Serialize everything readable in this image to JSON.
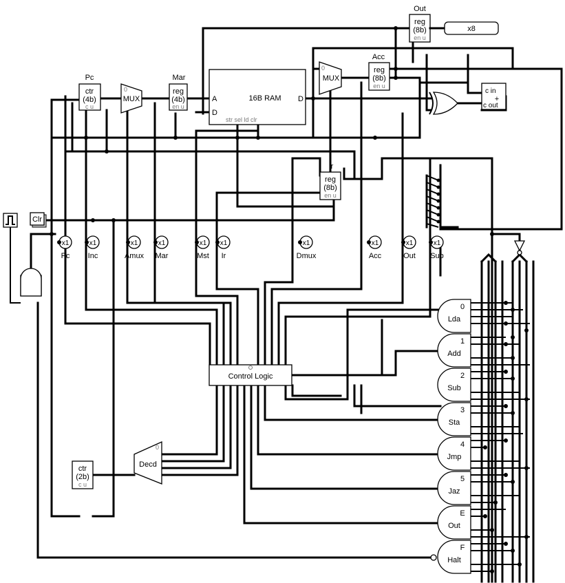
{
  "components": {
    "pc": {
      "title": "Pc",
      "line1": "ctr",
      "line2": "(4b)",
      "pins": "c  u"
    },
    "mar": {
      "title": "Mar",
      "line1": "reg",
      "line2": "(4b)",
      "pins": "en u"
    },
    "ram": {
      "title": "16B RAM",
      "pin_a": "A",
      "pin_d": "D",
      "pin_dout": "D",
      "ctrl": "str  sel      ld   clr"
    },
    "acc": {
      "title": "Acc",
      "line1": "reg",
      "line2": "(8b)",
      "pins": "en u"
    },
    "out": {
      "title": "Out",
      "line1": "reg",
      "line2": "(8b)",
      "pins": "en u"
    },
    "ir": {
      "title": "Ir",
      "line1": "reg",
      "line2": "(8b)",
      "pins": "en u"
    },
    "mux1": {
      "label": "MUX",
      "zero": "0"
    },
    "mux2": {
      "label": "MUX",
      "zero": "0"
    },
    "adder": {
      "cin": "c in",
      "cout": "c out",
      "op": "+"
    },
    "display": {
      "label": "x8"
    },
    "clr": {
      "label": "Clr"
    },
    "control": {
      "label": "Control Logic"
    },
    "decoder": {
      "label": "Decd",
      "zero": "0"
    },
    "step_ctr": {
      "line1": "ctr",
      "line2": "(2b)",
      "pins": "c  u"
    }
  },
  "probes": [
    {
      "label": "Pc",
      "value": "x1"
    },
    {
      "label": "Inc",
      "value": "x1"
    },
    {
      "label": "Amux",
      "value": "x1"
    },
    {
      "label": "Mar",
      "value": "x1"
    },
    {
      "label": "Mst",
      "value": "x1"
    },
    {
      "label": "Ir",
      "value": "x1"
    },
    {
      "label": "Dmux",
      "value": "x1"
    },
    {
      "label": "Acc",
      "value": "x1"
    },
    {
      "label": "Out",
      "value": "x1"
    },
    {
      "label": "Sub",
      "value": "x1"
    }
  ],
  "gates": [
    {
      "code": "0",
      "label": "Lda"
    },
    {
      "code": "1",
      "label": "Add"
    },
    {
      "code": "2",
      "label": "Sub"
    },
    {
      "code": "3",
      "label": "Sta"
    },
    {
      "code": "4",
      "label": "Jmp"
    },
    {
      "code": "5",
      "label": "Jaz"
    },
    {
      "code": "E",
      "label": "Out"
    },
    {
      "code": "F",
      "label": "Halt"
    }
  ]
}
